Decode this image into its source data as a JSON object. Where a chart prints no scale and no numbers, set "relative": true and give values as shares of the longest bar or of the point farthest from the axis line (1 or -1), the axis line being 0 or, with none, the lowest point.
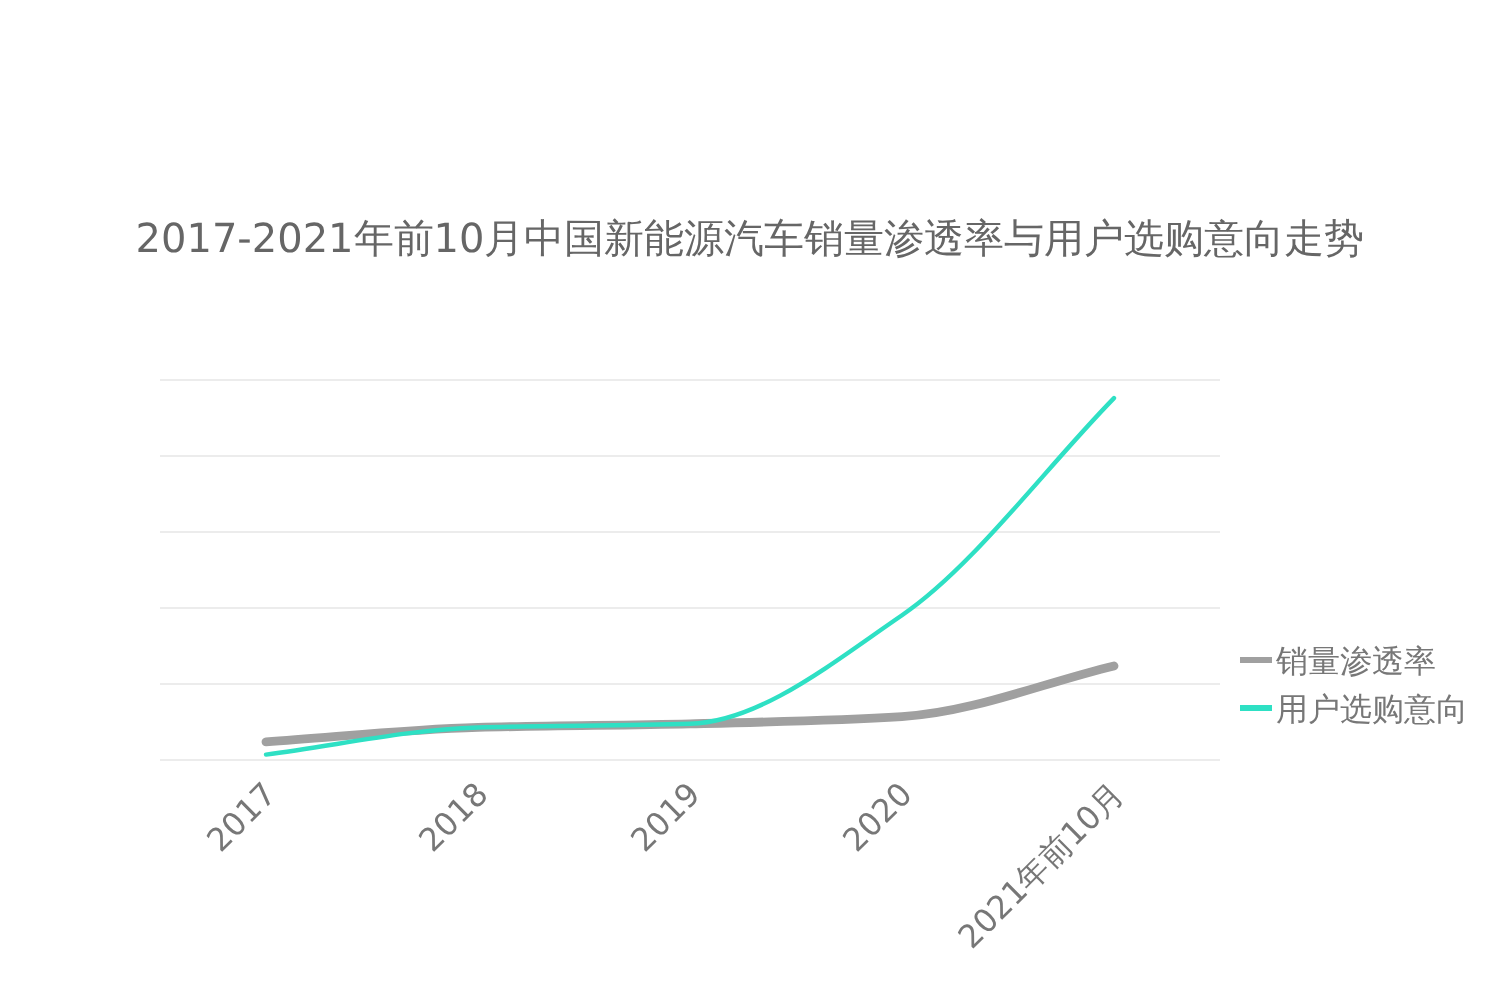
{
  "chart_data": {
    "type": "line",
    "title": "2017-2021年前10月中国新能源汽车销量渗透率与用户选购意向走势",
    "relative": true,
    "grid": "y",
    "legend": "right",
    "categories": [
      "2017",
      "2018",
      "2019",
      "2020",
      "2021年前10月"
    ],
    "series": [
      {
        "name": "销量渗透率",
        "color": "#a0a0a0",
        "values": [
          0.05,
          0.09,
          0.1,
          0.12,
          0.26
        ]
      },
      {
        "name": "用户选购意向",
        "color": "#2ee0c4",
        "values": [
          0.015,
          0.09,
          0.1,
          0.4,
          1
        ]
      }
    ]
  }
}
